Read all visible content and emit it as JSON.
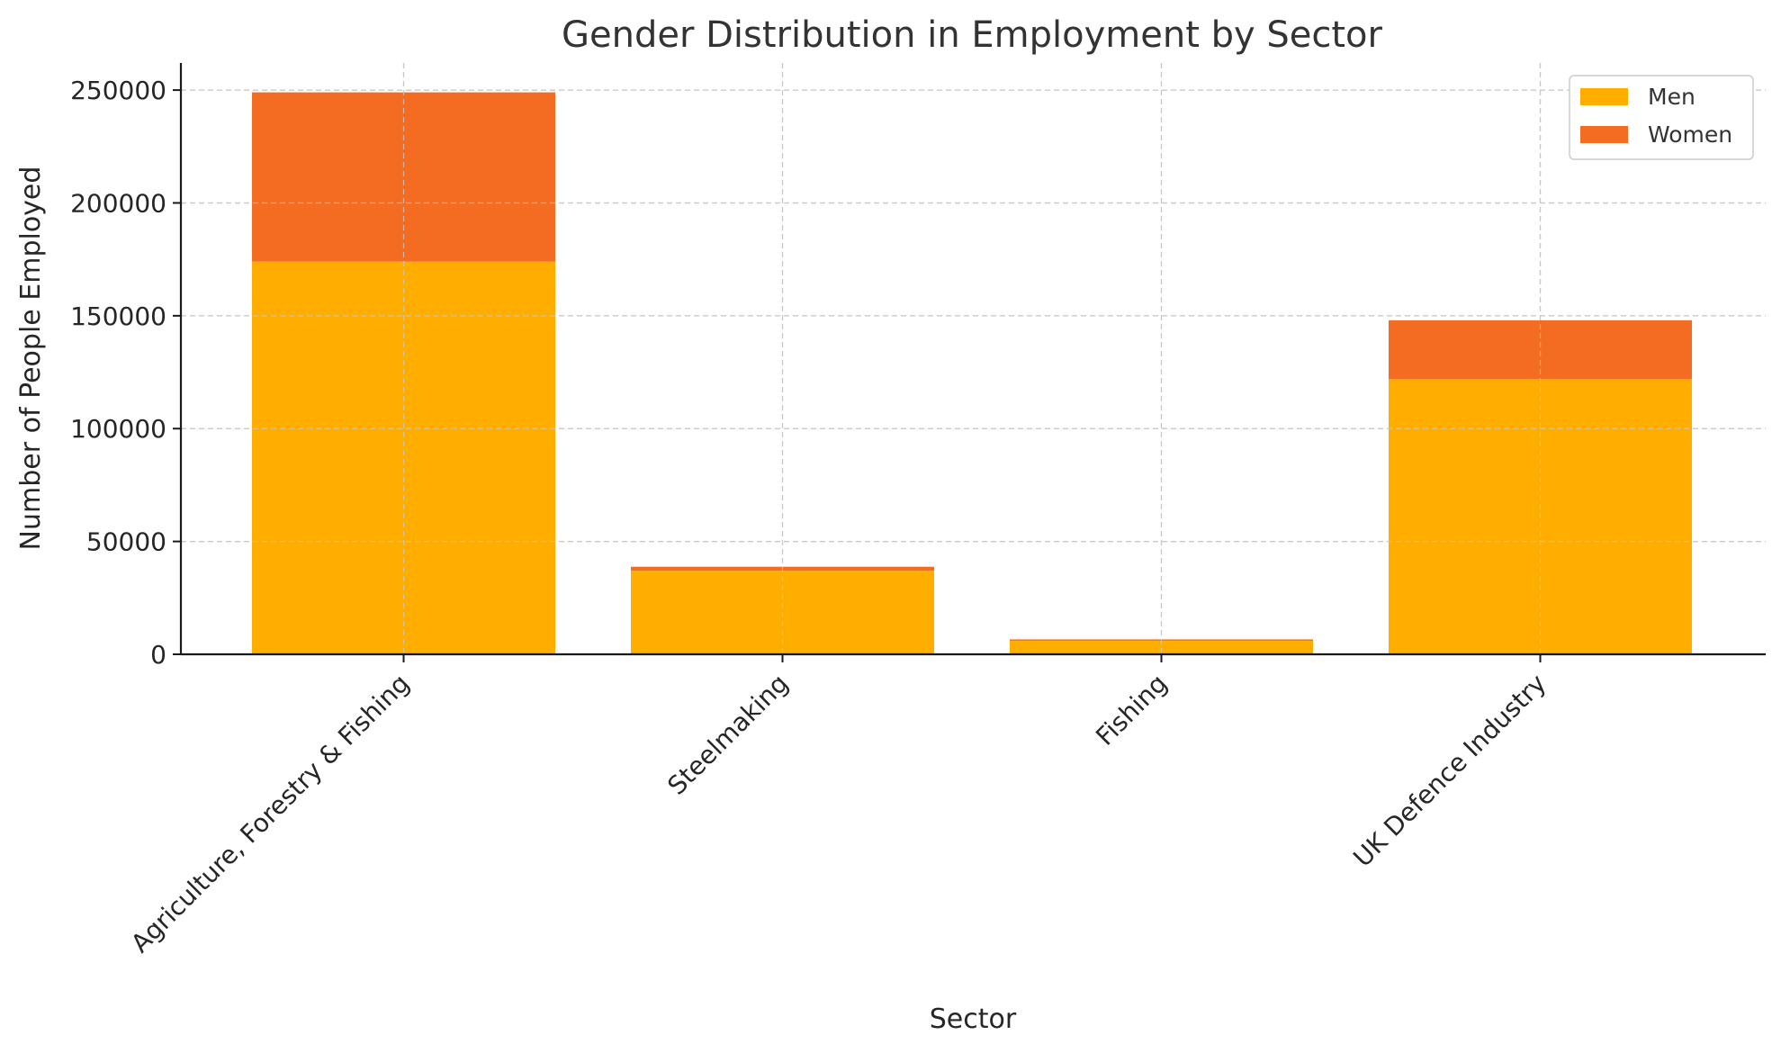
{
  "chart_data": {
    "type": "bar",
    "stacked": true,
    "title": "Gender Distribution in Employment by Sector",
    "xlabel": "Sector",
    "ylabel": "Number of People Employed",
    "categories": [
      "Agriculture, Forestry & Fishing",
      "Steelmaking",
      "Fishing",
      "UK Defence Industry"
    ],
    "series": [
      {
        "name": "Men",
        "color": "#FFAE00",
        "values": [
          174000,
          37000,
          6000,
          122000
        ]
      },
      {
        "name": "Women",
        "color": "#F36C21",
        "values": [
          75000,
          1800,
          600,
          26000
        ]
      }
    ],
    "ylim": [
      0,
      262000
    ],
    "yticks": [
      0,
      50000,
      100000,
      150000,
      200000,
      250000
    ],
    "grid": true,
    "legend_position": "top-right"
  }
}
